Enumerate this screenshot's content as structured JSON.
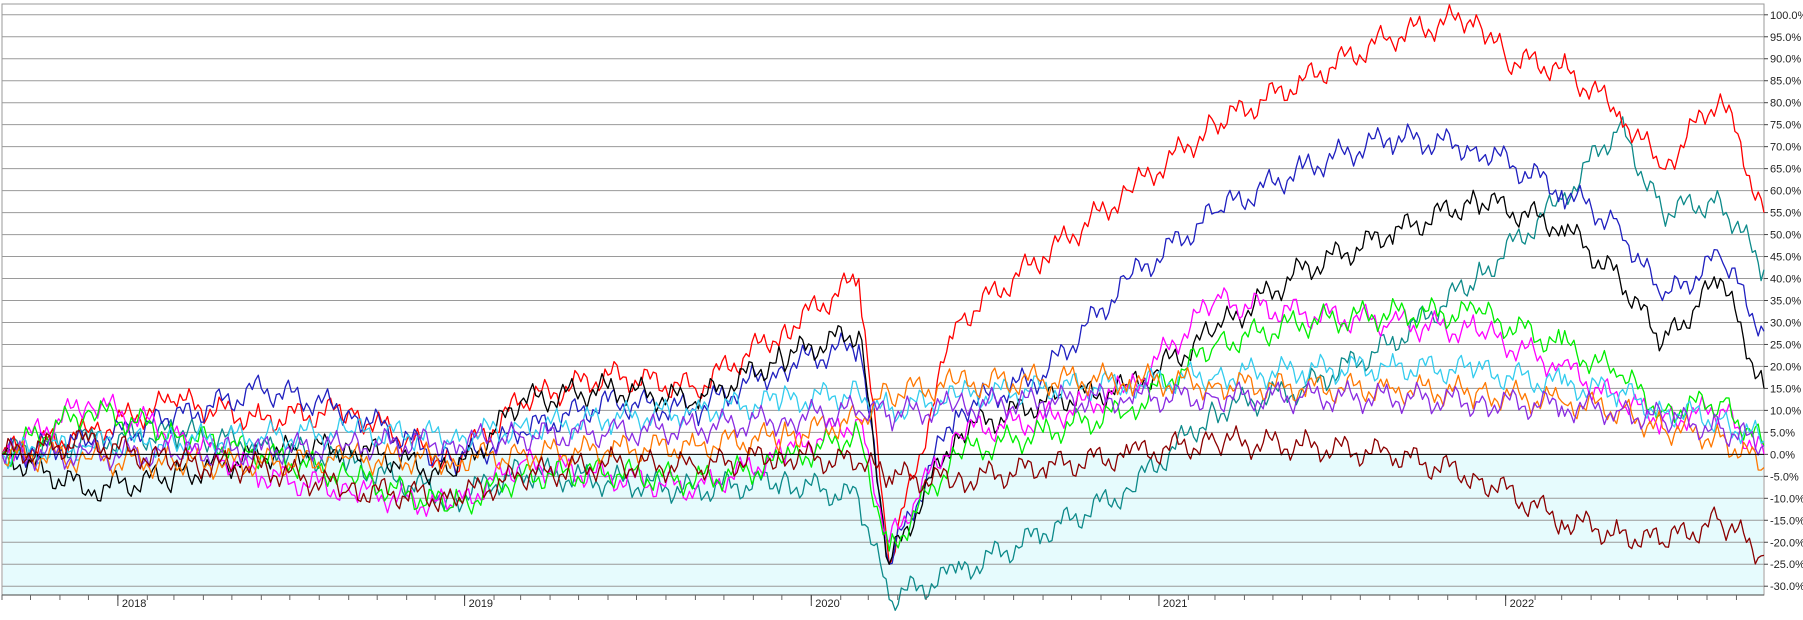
{
  "chart_data": {
    "type": "line",
    "title": "",
    "xlabel": "",
    "ylabel": "",
    "x_start": "2017-09-01",
    "x_end": "2022-09-30",
    "ylim": [
      -32,
      102
    ],
    "y_ticks": [
      100,
      95,
      90,
      85,
      80,
      75,
      70,
      65,
      60,
      55,
      50,
      45,
      40,
      35,
      30,
      25,
      20,
      15,
      10,
      5,
      0,
      -5,
      -10,
      -15,
      -20,
      -25,
      -30
    ],
    "y_tick_labels": [
      "100.0%",
      "95.0%",
      "90.0%",
      "85.0%",
      "80.0%",
      "75.0%",
      "70.0%",
      "65.0%",
      "60.0%",
      "55.0%",
      "50.0%",
      "45.0%",
      "40.0%",
      "35.0%",
      "30.0%",
      "25.0%",
      "20.0%",
      "15.0%",
      "10.0%",
      "5.0%",
      "0.0%",
      "-5.0%",
      "-10.0%",
      "-15.0%",
      "-20.0%",
      "-25.0%",
      "-30.0%"
    ],
    "x_ticks": [
      {
        "date": "2018-01-01",
        "label": "2018"
      },
      {
        "date": "2019-01-01",
        "label": "2019"
      },
      {
        "date": "2020-01-01",
        "label": "2020"
      },
      {
        "date": "2021-01-01",
        "label": "2021"
      },
      {
        "date": "2022-01-01",
        "label": "2022"
      }
    ],
    "grid": true,
    "legend": "none",
    "colors": {
      "negative_band": "#e6fbfd",
      "zero_line": "#000000",
      "grid": "#9a9a9a"
    },
    "series": [
      {
        "color": "#0d8a8a",
        "x": [
          "2017-09-01",
          "2017-12-01",
          "2018-03-01",
          "2018-06-01",
          "2018-09-01",
          "2018-12-20",
          "2019-03-01",
          "2019-06-01",
          "2019-09-01",
          "2019-12-01",
          "2020-02-20",
          "2020-03-23",
          "2020-06-01",
          "2020-09-01",
          "2020-12-01",
          "2021-03-01",
          "2021-06-01",
          "2021-09-01",
          "2021-12-01",
          "2022-03-01",
          "2022-05-01",
          "2022-06-15",
          "2022-08-15",
          "2022-09-30"
        ],
        "values": [
          0,
          3,
          5,
          2,
          -2,
          -10,
          -4,
          -6,
          -8,
          -6,
          -10,
          -33,
          -27,
          -18,
          -8,
          10,
          15,
          25,
          40,
          58,
          75,
          55,
          58,
          42
        ]
      },
      {
        "color": "#ff0000",
        "x": [
          "2017-09-01",
          "2017-12-01",
          "2018-03-01",
          "2018-06-01",
          "2018-09-01",
          "2018-12-20",
          "2019-03-01",
          "2019-06-01",
          "2019-09-01",
          "2019-12-01",
          "2020-02-20",
          "2020-03-23",
          "2020-06-01",
          "2020-09-01",
          "2020-12-01",
          "2021-03-01",
          "2021-06-01",
          "2021-09-01",
          "2021-12-01",
          "2022-01-01",
          "2022-03-01",
          "2022-05-01",
          "2022-06-15",
          "2022-08-15",
          "2022-09-30"
        ],
        "values": [
          0,
          5,
          12,
          8,
          10,
          -2,
          12,
          18,
          15,
          28,
          40,
          -25,
          30,
          45,
          60,
          75,
          85,
          95,
          100,
          90,
          88,
          78,
          65,
          82,
          55
        ]
      },
      {
        "color": "#2020c0",
        "x": [
          "2017-09-01",
          "2017-12-01",
          "2018-03-01",
          "2018-06-01",
          "2018-09-01",
          "2018-12-20",
          "2019-03-01",
          "2019-06-01",
          "2019-09-01",
          "2019-12-01",
          "2020-02-20",
          "2020-03-23",
          "2020-06-01",
          "2020-09-01",
          "2020-12-01",
          "2021-03-01",
          "2021-06-01",
          "2021-09-01",
          "2021-12-01",
          "2022-03-01",
          "2022-05-01",
          "2022-06-15",
          "2022-08-15",
          "2022-09-30"
        ],
        "values": [
          0,
          3,
          8,
          15,
          10,
          -2,
          5,
          12,
          10,
          20,
          25,
          -25,
          10,
          18,
          40,
          55,
          65,
          72,
          70,
          60,
          52,
          35,
          45,
          28
        ]
      },
      {
        "color": "#000000",
        "x": [
          "2017-09-01",
          "2017-12-01",
          "2018-03-01",
          "2018-06-01",
          "2018-09-01",
          "2018-12-20",
          "2019-03-01",
          "2019-06-01",
          "2019-09-01",
          "2019-12-01",
          "2020-02-20",
          "2020-03-23",
          "2020-06-01",
          "2020-09-01",
          "2020-12-01",
          "2021-03-01",
          "2021-06-01",
          "2021-09-01",
          "2021-12-01",
          "2022-03-01",
          "2022-05-01",
          "2022-06-15",
          "2022-08-15",
          "2022-09-30"
        ],
        "values": [
          0,
          -8,
          -5,
          0,
          2,
          -5,
          12,
          15,
          12,
          22,
          28,
          -25,
          5,
          12,
          15,
          28,
          42,
          50,
          58,
          52,
          40,
          25,
          40,
          15
        ]
      },
      {
        "color": "#ff00ff",
        "x": [
          "2017-09-01",
          "2017-12-01",
          "2018-03-01",
          "2018-06-01",
          "2018-09-01",
          "2018-12-20",
          "2019-03-01",
          "2019-06-01",
          "2019-09-01",
          "2019-12-01",
          "2020-02-20",
          "2020-03-23",
          "2020-06-01",
          "2020-09-01",
          "2020-12-01",
          "2021-03-01",
          "2021-06-01",
          "2021-09-01",
          "2021-12-01",
          "2022-03-01",
          "2022-05-01",
          "2022-06-15",
          "2022-08-15",
          "2022-09-30"
        ],
        "values": [
          0,
          12,
          5,
          -5,
          -8,
          -12,
          -2,
          -5,
          -8,
          0,
          8,
          -20,
          5,
          8,
          15,
          35,
          32,
          30,
          28,
          20,
          12,
          8,
          10,
          0
        ]
      },
      {
        "color": "#00ee00",
        "x": [
          "2017-09-01",
          "2017-12-01",
          "2018-03-01",
          "2018-06-01",
          "2018-09-01",
          "2018-12-20",
          "2019-03-01",
          "2019-06-01",
          "2019-09-01",
          "2019-12-01",
          "2020-02-20",
          "2020-03-23",
          "2020-06-01",
          "2020-09-01",
          "2020-12-01",
          "2021-03-01",
          "2021-06-01",
          "2021-09-01",
          "2021-12-01",
          "2022-03-01",
          "2022-05-01",
          "2022-06-15",
          "2022-08-15",
          "2022-09-30"
        ],
        "values": [
          0,
          10,
          5,
          0,
          -5,
          -12,
          -5,
          -4,
          -6,
          -2,
          5,
          -22,
          0,
          5,
          10,
          25,
          30,
          32,
          32,
          25,
          18,
          10,
          12,
          2
        ]
      },
      {
        "color": "#33ccee",
        "x": [
          "2017-09-01",
          "2017-12-01",
          "2018-03-01",
          "2018-06-01",
          "2018-09-01",
          "2018-12-20",
          "2019-03-01",
          "2019-06-01",
          "2019-09-01",
          "2019-12-01",
          "2020-02-20",
          "2020-03-23",
          "2020-06-01",
          "2020-09-01",
          "2020-12-01",
          "2021-03-01",
          "2021-06-01",
          "2021-09-01",
          "2021-12-01",
          "2022-03-01",
          "2022-05-01",
          "2022-06-15",
          "2022-08-15",
          "2022-09-30"
        ],
        "values": [
          0,
          2,
          3,
          4,
          5,
          4,
          6,
          8,
          10,
          12,
          14,
          10,
          13,
          15,
          16,
          18,
          19,
          20,
          19,
          16,
          14,
          10,
          8,
          3
        ]
      },
      {
        "color": "#ff7700",
        "x": [
          "2017-09-01",
          "2017-12-01",
          "2018-03-01",
          "2018-06-01",
          "2018-09-01",
          "2018-12-20",
          "2019-03-01",
          "2019-06-01",
          "2019-09-01",
          "2019-12-01",
          "2020-02-20",
          "2020-03-23",
          "2020-06-01",
          "2020-09-01",
          "2020-12-01",
          "2021-03-01",
          "2021-06-01",
          "2021-09-01",
          "2021-12-01",
          "2022-03-01",
          "2022-05-01",
          "2022-06-15",
          "2022-08-15",
          "2022-09-30"
        ],
        "values": [
          0,
          -1,
          -2,
          -2,
          -1,
          -1,
          0,
          1,
          2,
          4,
          8,
          14,
          16,
          17,
          17,
          16,
          15,
          15,
          14,
          12,
          10,
          6,
          4,
          -3
        ]
      },
      {
        "color": "#8a2be2",
        "x": [
          "2017-09-01",
          "2017-12-01",
          "2018-03-01",
          "2018-06-01",
          "2018-09-01",
          "2018-12-20",
          "2019-03-01",
          "2019-06-01",
          "2019-09-01",
          "2019-12-01",
          "2020-02-20",
          "2020-03-23",
          "2020-06-01",
          "2020-09-01",
          "2020-12-01",
          "2021-03-01",
          "2021-06-01",
          "2021-09-01",
          "2021-12-01",
          "2022-03-01",
          "2022-05-01",
          "2022-06-15",
          "2022-08-15",
          "2022-09-30"
        ],
        "values": [
          0,
          0,
          0,
          1,
          2,
          3,
          4,
          5,
          6,
          8,
          10,
          9,
          11,
          12,
          13,
          13,
          13,
          13,
          12,
          11,
          10,
          8,
          6,
          2
        ]
      },
      {
        "color": "#8b0000",
        "x": [
          "2017-09-01",
          "2017-12-01",
          "2018-03-01",
          "2018-06-01",
          "2018-09-01",
          "2018-12-20",
          "2019-03-01",
          "2019-06-01",
          "2019-09-01",
          "2019-12-01",
          "2020-02-20",
          "2020-03-23",
          "2020-06-01",
          "2020-09-01",
          "2020-12-01",
          "2021-03-01",
          "2021-06-01",
          "2021-09-01",
          "2021-12-01",
          "2022-03-01",
          "2022-05-01",
          "2022-06-15",
          "2022-08-15",
          "2022-09-30"
        ],
        "values": [
          0,
          3,
          -2,
          -3,
          -8,
          -10,
          -5,
          -2,
          -3,
          0,
          -2,
          -5,
          -6,
          -3,
          0,
          3,
          2,
          0,
          -5,
          -15,
          -18,
          -20,
          -15,
          -23
        ]
      }
    ]
  }
}
